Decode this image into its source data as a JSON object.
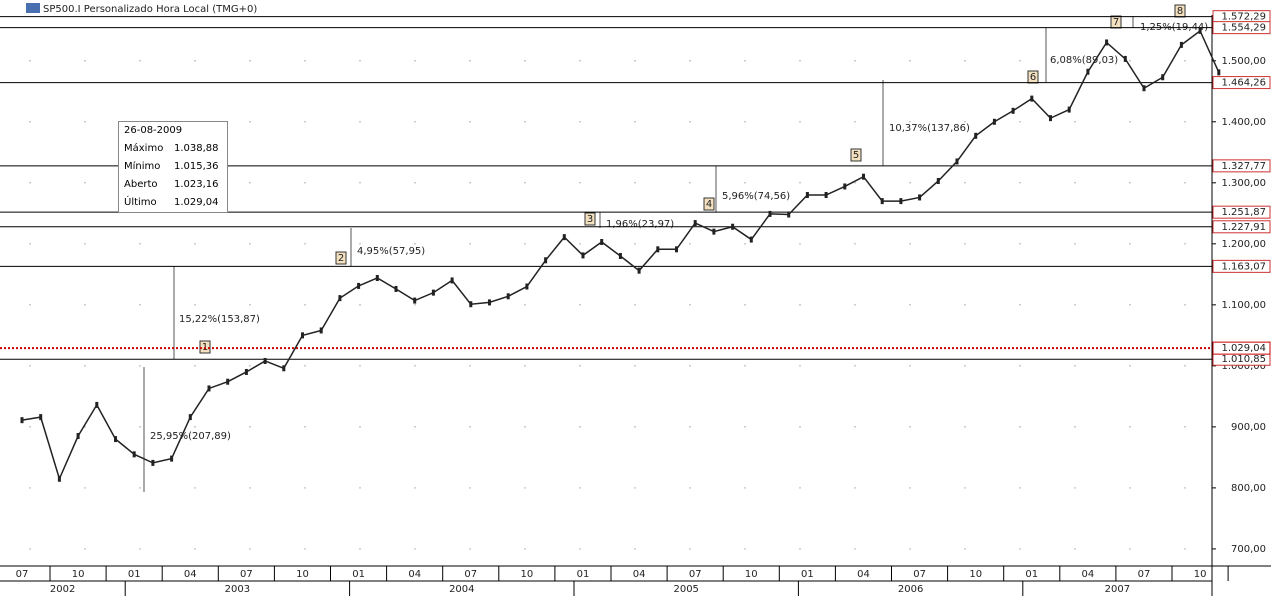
{
  "chart_data": {
    "type": "line",
    "title": "SP500.I Personalizado Hora Local (TMG+0)",
    "categories": [
      "07",
      null,
      null,
      "10",
      null,
      null,
      "01",
      null,
      null,
      "04",
      null,
      null,
      "07",
      null,
      null,
      "10",
      null,
      null,
      "01",
      null,
      null,
      "04",
      null,
      null,
      "07",
      null,
      null,
      "10",
      null,
      null,
      "01",
      null,
      null,
      "04",
      null,
      null,
      "07",
      null,
      null,
      "10",
      null,
      null,
      "01",
      null,
      null,
      "04",
      null,
      null,
      "07",
      null,
      null,
      "10",
      null,
      null,
      "01",
      null,
      null,
      "04",
      null,
      null,
      "07",
      null,
      null,
      "10",
      null
    ],
    "years": [
      "2002",
      "2003",
      "2004",
      "2005",
      "2006",
      "2007"
    ],
    "series": [
      {
        "name": "SP500.I",
        "color": "#222222",
        "values": [
          911,
          916,
          815,
          885,
          936,
          880,
          855,
          841,
          848,
          916,
          963,
          974,
          990,
          1008,
          996,
          1050,
          1058,
          1111,
          1131,
          1144,
          1126,
          1107,
          1120,
          1140,
          1101,
          1104,
          1114,
          1130,
          1173,
          1211,
          1181,
          1203,
          1180,
          1156,
          1191,
          1191,
          1234,
          1220,
          1228,
          1207,
          1249,
          1248,
          1280,
          1280,
          1294,
          1310,
          1270,
          1270,
          1276,
          1303,
          1335,
          1377,
          1400,
          1418,
          1438,
          1406,
          1420,
          1482,
          1530,
          1503,
          1455,
          1473,
          1526,
          1549,
          1481
        ]
      }
    ],
    "ylim": [
      672,
      1575
    ],
    "yticks": [
      {
        "value": 700,
        "label": "700,00"
      },
      {
        "value": 800,
        "label": "800,00"
      },
      {
        "value": 900,
        "label": "900,00"
      },
      {
        "value": 1000,
        "label": "1.000,00"
      },
      {
        "value": 1100,
        "label": "1.100,00"
      },
      {
        "value": 1200,
        "label": "1.200,00"
      },
      {
        "value": 1300,
        "label": "1.300,00"
      },
      {
        "value": 1400,
        "label": "1.400,00"
      },
      {
        "value": 1500,
        "label": "1.500,00"
      }
    ],
    "levels": [
      {
        "value": 1572.29,
        "label": "1.572,29"
      },
      {
        "value": 1554.29,
        "label": "1.554,29"
      },
      {
        "value": 1464.26,
        "label": "1.464,26"
      },
      {
        "value": 1327.77,
        "label": "1.327,77"
      },
      {
        "value": 1251.87,
        "label": "1.251,87"
      },
      {
        "value": 1227.91,
        "label": "1.227,91"
      },
      {
        "value": 1163.07,
        "label": "1.163,07"
      },
      {
        "value": 1010.85,
        "label": "1.010,85"
      }
    ],
    "current": {
      "value": 1029.04,
      "label": "1.029,04",
      "color": "#cc0000"
    },
    "markers": [
      "1",
      "2",
      "3",
      "4",
      "5",
      "6",
      "7",
      "8"
    ],
    "measures": [
      "25,95%(207,89)",
      "15,22%(153,87)",
      "4,95%(57,95)",
      "1,96%(23,97)",
      "5,96%(74,56)",
      "10,37%(137,86)",
      "6,08%(89,03)",
      "1,25%(19,44)"
    ],
    "info": {
      "date": "26-08-2009",
      "rows": [
        [
          "Máximo",
          "1.038,88"
        ],
        [
          "Mínimo",
          "1.015,36"
        ],
        [
          "Aberto",
          "1.023,16"
        ],
        [
          "Último",
          "1.029,04"
        ]
      ]
    }
  }
}
